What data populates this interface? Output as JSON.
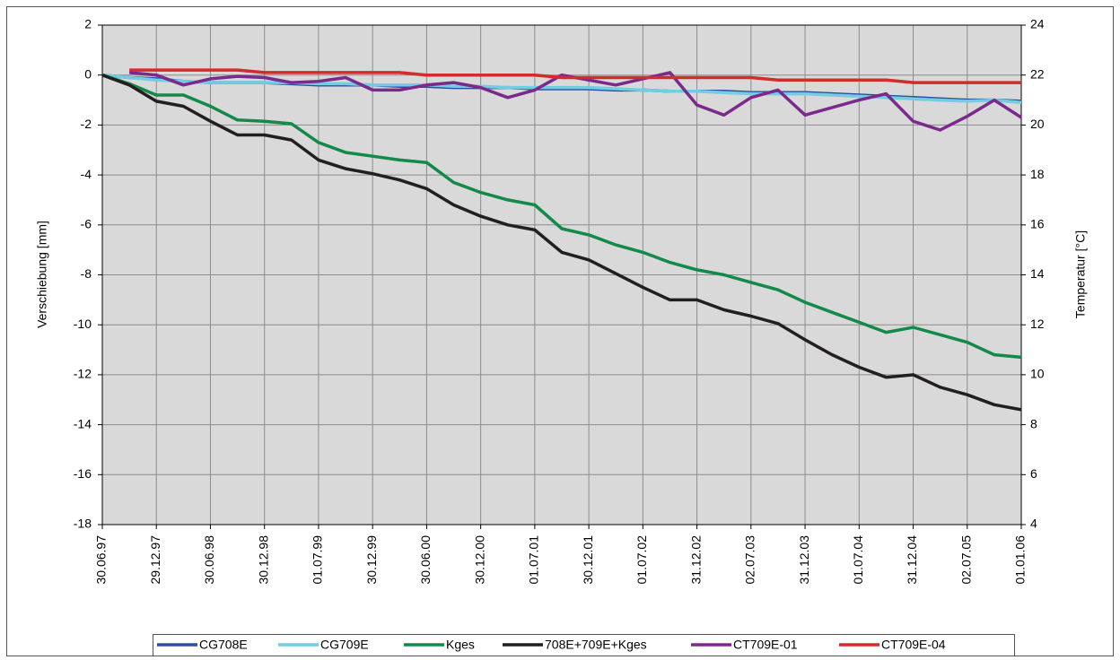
{
  "chart_data": {
    "type": "line",
    "y_label": "Verschiebung [mm]",
    "y2_label": "Temperatur [°C]",
    "x": [
      1997.5,
      1997.75,
      1998.0,
      1998.25,
      1998.5,
      1998.75,
      1999.0,
      1999.25,
      1999.5,
      1999.75,
      2000.0,
      2000.25,
      2000.5,
      2000.75,
      2001.0,
      2001.25,
      2001.5,
      2001.75,
      2002.0,
      2002.25,
      2002.5,
      2002.75,
      2003.0,
      2003.25,
      2003.5,
      2003.75,
      2004.0,
      2004.25,
      2004.5,
      2004.75,
      2005.0,
      2005.25,
      2005.5,
      2005.75,
      2006.0
    ],
    "xlim": [
      1997.5,
      2006.0
    ],
    "xticks": [
      {
        "value": 1997.5,
        "label": "30.06.97"
      },
      {
        "value": 1998.0,
        "label": "29.12.97"
      },
      {
        "value": 1998.5,
        "label": "30.06.98"
      },
      {
        "value": 1999.0,
        "label": "30.12.98"
      },
      {
        "value": 1999.5,
        "label": "01.07.99"
      },
      {
        "value": 2000.0,
        "label": "30.12.99"
      },
      {
        "value": 2000.5,
        "label": "30.06.00"
      },
      {
        "value": 2001.0,
        "label": "30.12.00"
      },
      {
        "value": 2001.5,
        "label": "01.07.01"
      },
      {
        "value": 2002.0,
        "label": "30.12.01"
      },
      {
        "value": 2002.5,
        "label": "01.07.02"
      },
      {
        "value": 2003.0,
        "label": "31.12.02"
      },
      {
        "value": 2003.5,
        "label": "02.07.03"
      },
      {
        "value": 2004.0,
        "label": "31.12.03"
      },
      {
        "value": 2004.5,
        "label": "01.07.04"
      },
      {
        "value": 2005.0,
        "label": "31.12.04"
      },
      {
        "value": 2005.5,
        "label": "02.07.05"
      },
      {
        "value": 2006.0,
        "label": "01.01.06"
      }
    ],
    "ylim": [
      -18,
      2
    ],
    "yticks": [
      -18,
      -16,
      -14,
      -12,
      -10,
      -8,
      -6,
      -4,
      -2,
      0,
      2
    ],
    "y2lim": [
      4,
      24
    ],
    "y2ticks": [
      4,
      6,
      8,
      10,
      12,
      14,
      16,
      18,
      20,
      22,
      24
    ],
    "grid": true,
    "legend": "bottom",
    "series": [
      {
        "name": "CG708E",
        "color": "#2e4fa0",
        "values": [
          0,
          -0.1,
          -0.15,
          -0.25,
          -0.3,
          -0.3,
          -0.3,
          -0.35,
          -0.4,
          -0.4,
          -0.4,
          -0.45,
          -0.45,
          -0.5,
          -0.5,
          -0.5,
          -0.55,
          -0.55,
          -0.55,
          -0.6,
          -0.6,
          -0.65,
          -0.65,
          -0.65,
          -0.7,
          -0.7,
          -0.7,
          -0.75,
          -0.8,
          -0.85,
          -0.9,
          -0.95,
          -1.0,
          -1.0,
          -1.05
        ]
      },
      {
        "name": "CG709E",
        "color": "#72cde2",
        "values": [
          0,
          -0.1,
          -0.2,
          -0.25,
          -0.3,
          -0.3,
          -0.3,
          -0.3,
          -0.35,
          -0.35,
          -0.4,
          -0.4,
          -0.4,
          -0.45,
          -0.45,
          -0.5,
          -0.5,
          -0.5,
          -0.5,
          -0.55,
          -0.6,
          -0.65,
          -0.65,
          -0.7,
          -0.75,
          -0.75,
          -0.75,
          -0.8,
          -0.85,
          -0.9,
          -0.95,
          -1.0,
          -1.05,
          -1.0,
          -1.1
        ]
      },
      {
        "name": "Kges",
        "color": "#13894a",
        "values": [
          0,
          -0.35,
          -0.8,
          -0.8,
          -1.25,
          -1.8,
          -1.85,
          -1.95,
          -2.7,
          -3.1,
          -3.25,
          -3.4,
          -3.5,
          -4.3,
          -4.7,
          -5.0,
          -5.2,
          -6.15,
          -6.4,
          -6.8,
          -7.1,
          -7.5,
          -7.8,
          -8.0,
          -8.3,
          -8.6,
          -9.1,
          -9.5,
          -9.9,
          -10.3,
          -10.1,
          -10.4,
          -10.7,
          -11.2,
          -11.3
        ]
      },
      {
        "name": "708E+709E+Kges",
        "color": "#231f20",
        "values": [
          0,
          -0.4,
          -1.05,
          -1.25,
          -1.85,
          -2.4,
          -2.4,
          -2.6,
          -3.4,
          -3.75,
          -3.95,
          -4.2,
          -4.55,
          -5.2,
          -5.65,
          -6.0,
          -6.2,
          -7.1,
          -7.4,
          -7.95,
          -8.5,
          -9.0,
          -9.0,
          -9.4,
          -9.65,
          -9.95,
          -10.6,
          -11.2,
          -11.7,
          -12.1,
          -12.0,
          -12.5,
          -12.8,
          -13.2,
          -13.4
        ]
      },
      {
        "name": "CT709E-01",
        "color": "#7b2a8c",
        "axis": "y2",
        "values": [
          null,
          22.1,
          22.0,
          21.6,
          21.85,
          21.95,
          21.9,
          21.7,
          21.75,
          21.9,
          21.4,
          21.4,
          21.6,
          21.7,
          21.5,
          21.1,
          21.4,
          22.0,
          21.8,
          21.6,
          21.85,
          22.1,
          20.8,
          20.4,
          21.1,
          21.4,
          20.4,
          20.7,
          21.0,
          21.25,
          20.15,
          19.8,
          20.35,
          21.0,
          20.3
        ]
      },
      {
        "name": "CT709E-04",
        "color": "#d42b2b",
        "axis": "y2",
        "values": [
          null,
          22.2,
          22.2,
          22.2,
          22.2,
          22.2,
          22.1,
          22.1,
          22.1,
          22.1,
          22.1,
          22.1,
          22.0,
          22.0,
          22.0,
          22.0,
          22.0,
          21.9,
          21.9,
          21.9,
          21.9,
          21.9,
          21.9,
          21.9,
          21.9,
          21.8,
          21.8,
          21.8,
          21.8,
          21.8,
          21.7,
          21.7,
          21.7,
          21.7,
          21.7
        ]
      }
    ]
  }
}
